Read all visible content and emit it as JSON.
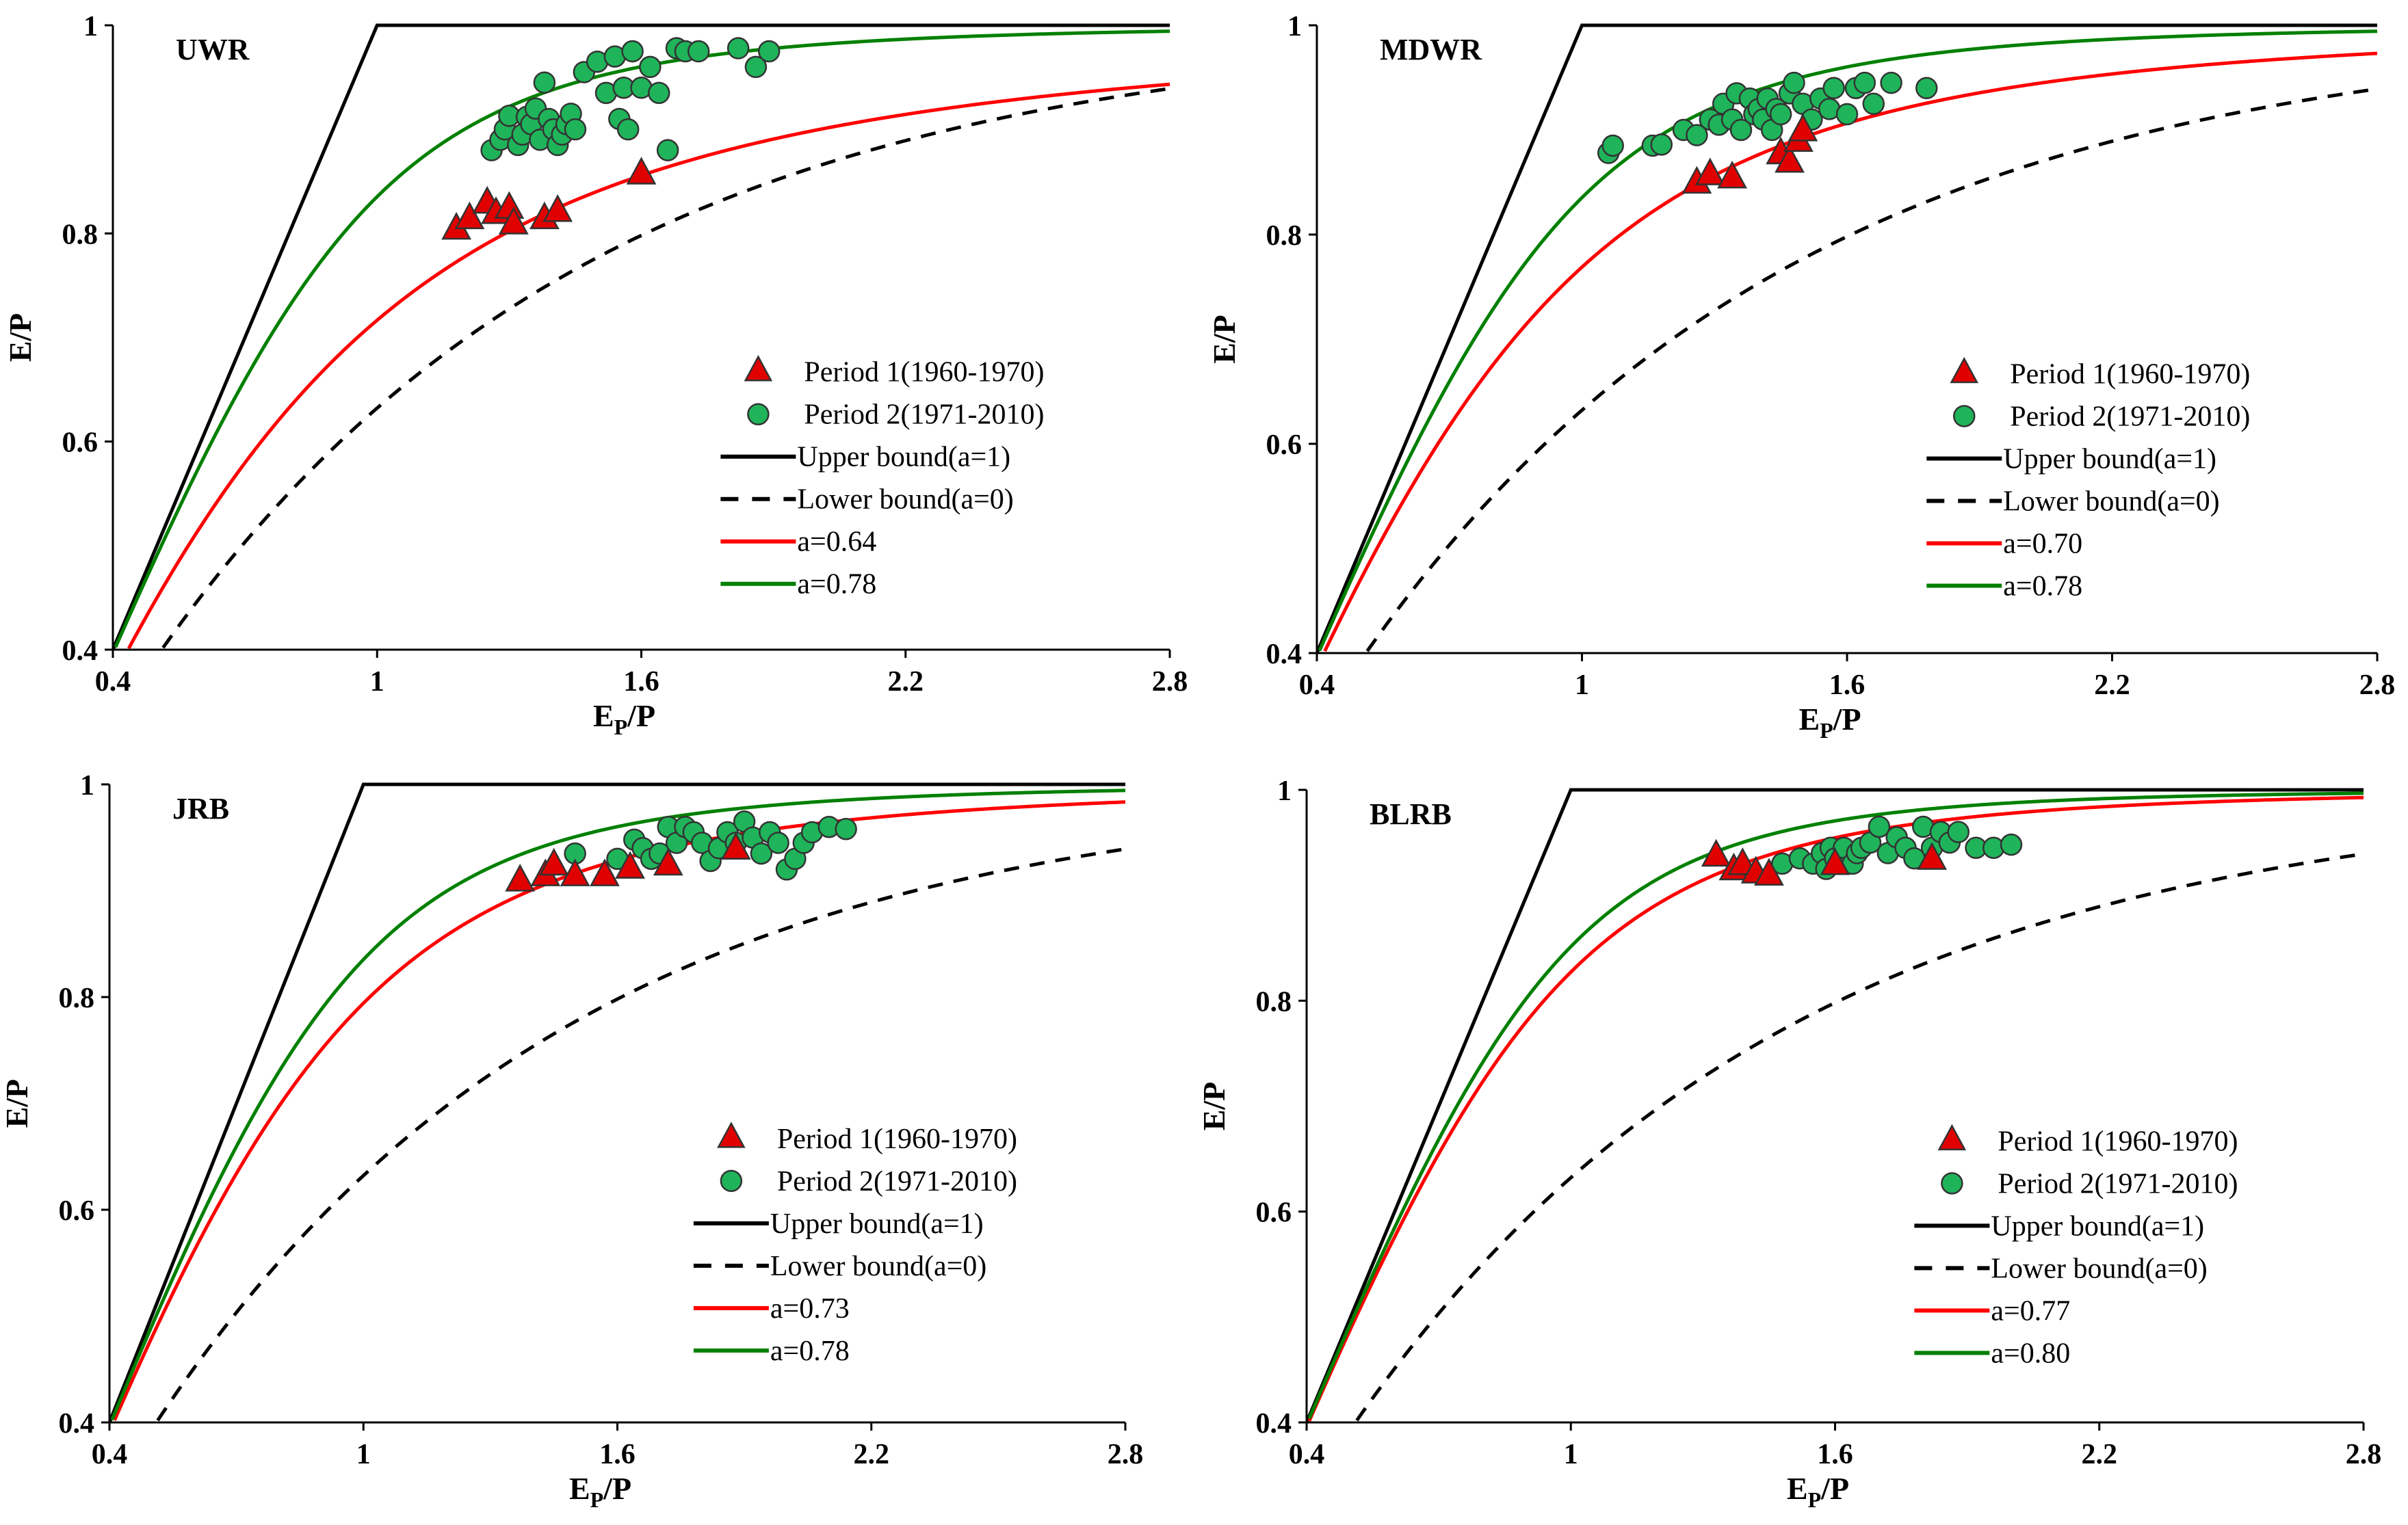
{
  "figure": {
    "legend_labels": {
      "period1": "Period 1(1960-1970)",
      "period2": "Period 2(1971-2010)",
      "upper": "Upper bound(a=1)",
      "lower": "Lower bound(a=0)"
    },
    "colors": {
      "red": "#ff0000",
      "green": "#008000",
      "triangle_fill": "#e00000",
      "circle_fill": "#1fb45a",
      "marker_edge": "#333333",
      "black": "#000000"
    }
  },
  "chart_data": [
    {
      "type": "scatter",
      "title": "UWR",
      "xlabel": "E_P/P",
      "ylabel": "E/P",
      "xlim": [
        0.4,
        2.8
      ],
      "ylim": [
        0.4,
        1.0
      ],
      "xticks": [
        "0.4",
        "1",
        "1.6",
        "2.2",
        "2.8"
      ],
      "yticks": [
        "0.4",
        "0.6",
        "0.8",
        "1"
      ],
      "legend_position": "bottom-right",
      "curves": [
        {
          "name": "a=0.64",
          "label": "a=0.64",
          "a": 0.64,
          "color": "#ff0000"
        },
        {
          "name": "a=0.78",
          "label": "a=0.78",
          "a": 0.78,
          "color": "#008000"
        }
      ],
      "period1": [
        [
          1.18,
          0.805
        ],
        [
          1.21,
          0.815
        ],
        [
          1.25,
          0.83
        ],
        [
          1.27,
          0.82
        ],
        [
          1.3,
          0.825
        ],
        [
          1.31,
          0.81
        ],
        [
          1.38,
          0.815
        ],
        [
          1.41,
          0.822
        ],
        [
          1.6,
          0.858
        ]
      ],
      "period2": [
        [
          1.26,
          0.88
        ],
        [
          1.28,
          0.89
        ],
        [
          1.29,
          0.9
        ],
        [
          1.3,
          0.913
        ],
        [
          1.32,
          0.885
        ],
        [
          1.33,
          0.895
        ],
        [
          1.34,
          0.912
        ],
        [
          1.35,
          0.905
        ],
        [
          1.36,
          0.92
        ],
        [
          1.37,
          0.89
        ],
        [
          1.38,
          0.945
        ],
        [
          1.39,
          0.91
        ],
        [
          1.4,
          0.9
        ],
        [
          1.41,
          0.885
        ],
        [
          1.42,
          0.895
        ],
        [
          1.43,
          0.905
        ],
        [
          1.44,
          0.915
        ],
        [
          1.45,
          0.9
        ],
        [
          1.47,
          0.955
        ],
        [
          1.5,
          0.965
        ],
        [
          1.52,
          0.935
        ],
        [
          1.54,
          0.97
        ],
        [
          1.55,
          0.91
        ],
        [
          1.56,
          0.94
        ],
        [
          1.57,
          0.9
        ],
        [
          1.58,
          0.975
        ],
        [
          1.6,
          0.94
        ],
        [
          1.62,
          0.96
        ],
        [
          1.64,
          0.935
        ],
        [
          1.66,
          0.88
        ],
        [
          1.68,
          0.978
        ],
        [
          1.7,
          0.975
        ],
        [
          1.73,
          0.975
        ],
        [
          1.82,
          0.978
        ],
        [
          1.86,
          0.96
        ],
        [
          1.89,
          0.975
        ]
      ]
    },
    {
      "type": "scatter",
      "title": "MDWR",
      "xlabel": "E_P/P",
      "ylabel": "E/P",
      "xlim": [
        0.4,
        2.8
      ],
      "ylim": [
        0.4,
        1.0
      ],
      "xticks": [
        "0.4",
        "1",
        "1.6",
        "2.2",
        "2.8"
      ],
      "yticks": [
        "0.4",
        "0.6",
        "0.8",
        "1"
      ],
      "legend_position": "bottom-right",
      "curves": [
        {
          "name": "a=0.70",
          "label": "a=0.70",
          "a": 0.7,
          "color": "#ff0000"
        },
        {
          "name": "a=0.78",
          "label": "a=0.78",
          "a": 0.78,
          "color": "#008000"
        }
      ],
      "period1": [
        [
          1.26,
          0.85
        ],
        [
          1.29,
          0.858
        ],
        [
          1.34,
          0.855
        ],
        [
          1.45,
          0.878
        ],
        [
          1.47,
          0.87
        ],
        [
          1.49,
          0.89
        ],
        [
          1.5,
          0.9
        ]
      ],
      "period2": [
        [
          1.06,
          0.878
        ],
        [
          1.07,
          0.885
        ],
        [
          1.16,
          0.885
        ],
        [
          1.18,
          0.886
        ],
        [
          1.23,
          0.9
        ],
        [
          1.26,
          0.895
        ],
        [
          1.29,
          0.91
        ],
        [
          1.31,
          0.905
        ],
        [
          1.32,
          0.925
        ],
        [
          1.34,
          0.91
        ],
        [
          1.35,
          0.935
        ],
        [
          1.36,
          0.9
        ],
        [
          1.38,
          0.93
        ],
        [
          1.39,
          0.915
        ],
        [
          1.4,
          0.92
        ],
        [
          1.41,
          0.91
        ],
        [
          1.42,
          0.93
        ],
        [
          1.43,
          0.9
        ],
        [
          1.44,
          0.92
        ],
        [
          1.45,
          0.915
        ],
        [
          1.47,
          0.935
        ],
        [
          1.48,
          0.945
        ],
        [
          1.5,
          0.925
        ],
        [
          1.52,
          0.91
        ],
        [
          1.54,
          0.93
        ],
        [
          1.56,
          0.92
        ],
        [
          1.57,
          0.94
        ],
        [
          1.6,
          0.915
        ],
        [
          1.62,
          0.94
        ],
        [
          1.64,
          0.945
        ],
        [
          1.66,
          0.925
        ],
        [
          1.7,
          0.945
        ],
        [
          1.78,
          0.94
        ]
      ]
    },
    {
      "type": "scatter",
      "title": "JRB",
      "xlabel": "E_P/P",
      "ylabel": "E/P",
      "xlim": [
        0.4,
        2.8
      ],
      "ylim": [
        0.4,
        1.0
      ],
      "xticks": [
        "0.4",
        "1",
        "1.6",
        "2.2",
        "2.8"
      ],
      "yticks": [
        "0.4",
        "0.6",
        "0.8",
        "1"
      ],
      "legend_position": "bottom-right",
      "curves": [
        {
          "name": "a=0.73",
          "label": "a=0.73",
          "a": 0.73,
          "color": "#ff0000"
        },
        {
          "name": "a=0.78",
          "label": "a=0.78",
          "a": 0.78,
          "color": "#008000"
        }
      ],
      "period1": [
        [
          1.37,
          0.91
        ],
        [
          1.43,
          0.915
        ],
        [
          1.45,
          0.925
        ],
        [
          1.5,
          0.915
        ],
        [
          1.57,
          0.915
        ],
        [
          1.63,
          0.922
        ],
        [
          1.72,
          0.925
        ],
        [
          1.88,
          0.94
        ]
      ],
      "period2": [
        [
          1.5,
          0.935
        ],
        [
          1.6,
          0.93
        ],
        [
          1.64,
          0.948
        ],
        [
          1.66,
          0.94
        ],
        [
          1.68,
          0.93
        ],
        [
          1.7,
          0.935
        ],
        [
          1.72,
          0.96
        ],
        [
          1.74,
          0.945
        ],
        [
          1.76,
          0.96
        ],
        [
          1.78,
          0.955
        ],
        [
          1.8,
          0.945
        ],
        [
          1.82,
          0.928
        ],
        [
          1.84,
          0.94
        ],
        [
          1.86,
          0.955
        ],
        [
          1.88,
          0.945
        ],
        [
          1.9,
          0.965
        ],
        [
          1.92,
          0.95
        ],
        [
          1.94,
          0.935
        ],
        [
          1.96,
          0.955
        ],
        [
          1.98,
          0.945
        ],
        [
          2.0,
          0.92
        ],
        [
          2.02,
          0.93
        ],
        [
          2.04,
          0.945
        ],
        [
          2.06,
          0.955
        ],
        [
          2.1,
          0.96
        ],
        [
          2.14,
          0.958
        ]
      ]
    },
    {
      "type": "scatter",
      "title": "BLRB",
      "xlabel": "E_P/P",
      "ylabel": "E/P",
      "xlim": [
        0.4,
        2.8
      ],
      "ylim": [
        0.4,
        1.0
      ],
      "xticks": [
        "0.4",
        "1",
        "1.6",
        "2.2",
        "2.8"
      ],
      "yticks": [
        "0.4",
        "0.6",
        "0.8",
        "1"
      ],
      "legend_position": "bottom-right",
      "curves": [
        {
          "name": "a=0.77",
          "label": "a=0.77",
          "a": 0.77,
          "color": "#ff0000"
        },
        {
          "name": "a=0.80",
          "label": "a=0.80",
          "a": 0.8,
          "color": "#008000"
        }
      ],
      "period1": [
        [
          1.33,
          0.938
        ],
        [
          1.37,
          0.925
        ],
        [
          1.39,
          0.93
        ],
        [
          1.42,
          0.922
        ],
        [
          1.45,
          0.92
        ],
        [
          1.6,
          0.93
        ],
        [
          1.82,
          0.935
        ]
      ],
      "period2": [
        [
          1.48,
          0.93
        ],
        [
          1.52,
          0.935
        ],
        [
          1.55,
          0.93
        ],
        [
          1.57,
          0.94
        ],
        [
          1.58,
          0.925
        ],
        [
          1.59,
          0.945
        ],
        [
          1.6,
          0.935
        ],
        [
          1.62,
          0.945
        ],
        [
          1.64,
          0.93
        ],
        [
          1.65,
          0.94
        ],
        [
          1.66,
          0.945
        ],
        [
          1.68,
          0.95
        ],
        [
          1.7,
          0.965
        ],
        [
          1.72,
          0.94
        ],
        [
          1.74,
          0.955
        ],
        [
          1.76,
          0.945
        ],
        [
          1.78,
          0.935
        ],
        [
          1.8,
          0.965
        ],
        [
          1.82,
          0.945
        ],
        [
          1.84,
          0.96
        ],
        [
          1.86,
          0.95
        ],
        [
          1.88,
          0.96
        ],
        [
          1.92,
          0.945
        ],
        [
          1.96,
          0.945
        ],
        [
          2.0,
          0.948
        ]
      ]
    }
  ]
}
